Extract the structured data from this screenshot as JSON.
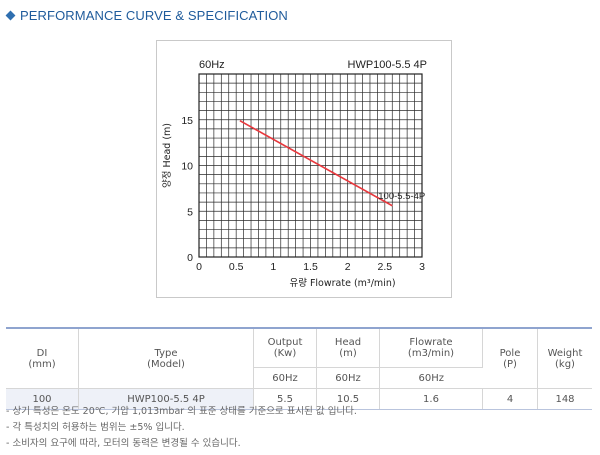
{
  "header": {
    "title": "PERFORMANCE CURVE & SPECIFICATION"
  },
  "chart_data": {
    "type": "line",
    "freq_label": "60Hz",
    "model_label": "HWP100-5.5 4P",
    "curve_label": "100-5.5-4P",
    "ylabel": "양정 Head (m)",
    "xlabel": "유량 Flowrate (m³/min)",
    "xlim": [
      0,
      3
    ],
    "ylim": [
      0,
      20
    ],
    "x_ticks": [
      "0",
      "0.5",
      "1",
      "1.5",
      "2",
      "2.5",
      "3"
    ],
    "y_ticks": [
      "0",
      "5",
      "10",
      "15"
    ],
    "grid": true,
    "series": [
      {
        "color": "#e8383d",
        "x": [
          0.55,
          2.6
        ],
        "y": [
          14.9,
          5.6
        ]
      }
    ]
  },
  "table": {
    "headers": [
      {
        "line1": "DI",
        "line2": "(mm)"
      },
      {
        "line1": "Type",
        "line2": "(Model)"
      },
      {
        "line1": "Output",
        "line2": "(Kw)"
      },
      {
        "line1": "Head",
        "line2": "(m)"
      },
      {
        "line1": "Flowrate",
        "line2": "(m3/min)"
      },
      {
        "line1": "Pole",
        "line2": "(P)"
      },
      {
        "line1": "Weight",
        "line2": "(kg)"
      }
    ],
    "sub": {
      "output": "60Hz",
      "head": "60Hz",
      "flowrate": "60Hz"
    },
    "row": {
      "di": "100",
      "type": "HWP100-5.5 4P",
      "output": "5.5",
      "head": "10.5",
      "flowrate": "1.6",
      "pole": "4",
      "weight": "148"
    }
  },
  "notes": [
    "- 상기 특성은 온도 20℃, 기압 1,013mbar 의 표준 상태를 기준으로 표시된 값 입니다.",
    "- 각 특성치의 허용하는 범위는 ±5% 입니다.",
    "- 소비자의 요구에 따라, 모터의 동력은 변경될 수 있습니다."
  ]
}
